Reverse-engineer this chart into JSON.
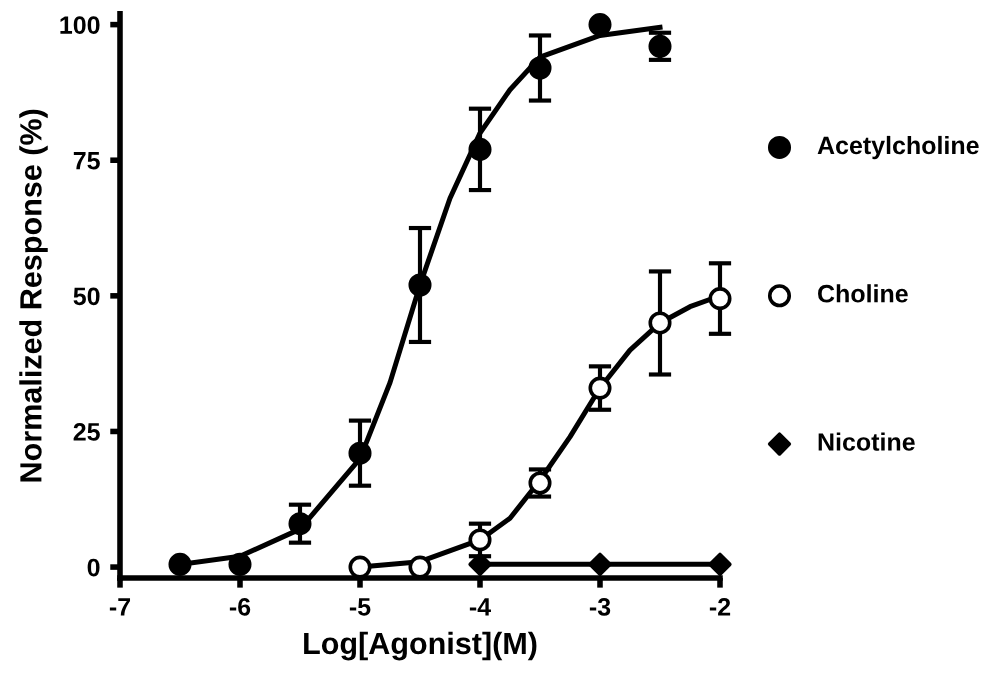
{
  "chart_data": {
    "type": "scatter",
    "xlabel": "Log[Agonist](M)",
    "ylabel": "Normalized Response (%)",
    "xlim": [
      -7,
      -2
    ],
    "ylim": [
      -2,
      102
    ],
    "xticks": [
      -7,
      -6,
      -5,
      -4,
      -3,
      -2
    ],
    "yticks": [
      0,
      25,
      50,
      75,
      100
    ],
    "grid": false,
    "legend": "right",
    "series": [
      {
        "name": "Acetylcholine",
        "marker": "circle",
        "color": "#000000",
        "x": [
          -6.5,
          -6,
          -5.5,
          -5,
          -4.5,
          -4,
          -3.5,
          -3,
          -2.5
        ],
        "values": [
          0.5,
          0.5,
          8,
          21,
          52,
          77,
          92,
          100,
          96
        ],
        "errors": [
          null,
          null,
          3.5,
          6,
          10.5,
          7.5,
          6,
          null,
          2.5
        ]
      },
      {
        "name": "Choline",
        "marker": "circle",
        "color": "#ffffff",
        "x": [
          -5,
          -4.5,
          -4,
          -3.5,
          -3,
          -2.5,
          -2
        ],
        "values": [
          0,
          0,
          5,
          15.5,
          33,
          45,
          49.5
        ],
        "errors": [
          null,
          null,
          3,
          2.5,
          4,
          9.5,
          6.5
        ]
      },
      {
        "name": "Nicotine",
        "marker": "diamond",
        "color": "#000000",
        "x": [
          -4,
          -3,
          -2
        ],
        "values": [
          0.5,
          0.5,
          0.5
        ]
      },
      {
        "type": "line",
        "color": "#000000",
        "x": [
          -6.5,
          -6,
          -5.5,
          -5,
          -4.75,
          -4.5,
          -4.25,
          -4,
          -3.75,
          -3.5,
          -3,
          -2.5
        ],
        "values": [
          0.5,
          2,
          7,
          20,
          34,
          52,
          68,
          80,
          88,
          94,
          98,
          99.5
        ]
      },
      {
        "type": "line",
        "color": "#000000",
        "x": [
          -5,
          -4.5,
          -4,
          -3.75,
          -3.5,
          -3.25,
          -3,
          -2.75,
          -2.5,
          -2.25,
          -2
        ],
        "values": [
          0,
          1,
          5,
          9,
          16,
          24,
          33,
          40,
          45,
          48,
          50
        ]
      },
      {
        "type": "line",
        "color": "#000000",
        "x": [
          -4,
          -2
        ],
        "values": [
          0.5,
          0.5
        ]
      }
    ]
  }
}
